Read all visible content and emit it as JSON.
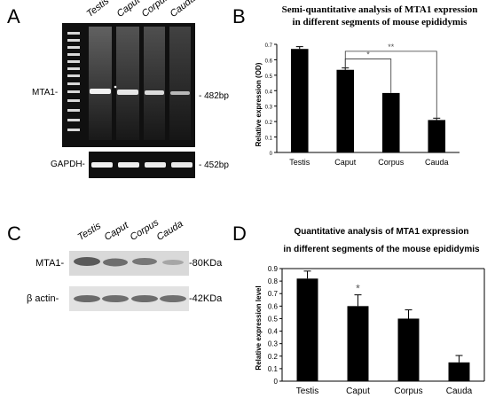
{
  "panels": {
    "a": {
      "letter": "A",
      "lanes": [
        "Testis",
        "Caput",
        "Corpus",
        "Cauda"
      ],
      "band_top_label": "MTA1-",
      "band_top_size": "- 482bp",
      "band_bottom_label": "GAPDH-",
      "band_bottom_size": "- 452bp"
    },
    "c": {
      "letter": "C",
      "lanes": [
        "Testis",
        "Caput",
        "Corpus",
        "Cauda"
      ],
      "band_top_label": "MTA1-",
      "band_top_size": "-80KDa",
      "band_bottom_label": "β actin-",
      "band_bottom_size": "-42KDa"
    }
  },
  "chart_data": [
    {
      "letter": "B",
      "type": "bar",
      "title_line1": "Semi-quantitative analysis of MTA1 expression",
      "title_line2": "in different segments of mouse epididymis",
      "ylabel": "Relative expression (OD)",
      "xlabel": "",
      "categories": [
        "Testis",
        "Caput",
        "Corpus",
        "Cauda"
      ],
      "values": [
        0.67,
        0.535,
        0.385,
        0.21
      ],
      "errors": [
        0.015,
        0.012,
        0.0,
        0.012
      ],
      "ylim": [
        0,
        0.7
      ],
      "ticks": [
        "0",
        "0.1",
        "0.2",
        "0.3",
        "0.4",
        "0.5",
        "0.6",
        "0.7"
      ],
      "significance": [
        {
          "from": 1,
          "to": 2,
          "label": "*"
        },
        {
          "from": 1,
          "to": 3,
          "label": "**"
        }
      ],
      "bar_color": "#000000"
    },
    {
      "letter": "D",
      "type": "bar",
      "title_line1": "Quantitative analysis of MTA1 expression",
      "title_line2": "in different segments of the mouse epididymis",
      "ylabel": "Relative expression level",
      "xlabel": "",
      "categories": [
        "Testis",
        "Caput",
        "Corpus",
        "Cauda"
      ],
      "values": [
        0.82,
        0.6,
        0.5,
        0.15
      ],
      "errors": [
        0.06,
        0.09,
        0.07,
        0.055
      ],
      "ylim": [
        0,
        0.9
      ],
      "ticks": [
        "0",
        "0.1",
        "0.2",
        "0.3",
        "0.4",
        "0.5",
        "0.6",
        "0.7",
        "0.8",
        "0.9"
      ],
      "significance": [
        {
          "bar": 1,
          "label": "*"
        }
      ],
      "bar_color": "#000000"
    }
  ]
}
